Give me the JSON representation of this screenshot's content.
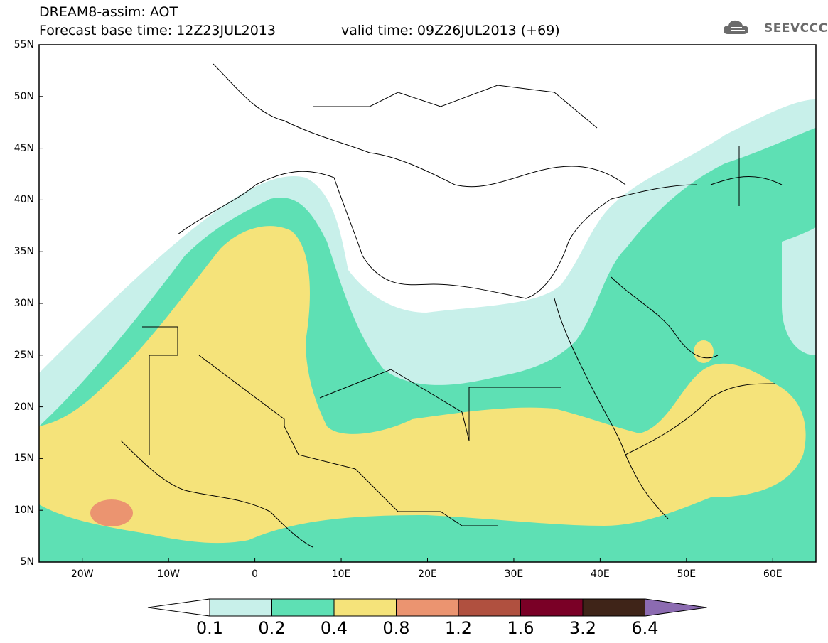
{
  "title_line1": "DREAM8-assim: AOT",
  "title_line2": "Forecast base time: 12Z23JUL2013",
  "valid_time": "valid time: 09Z26JUL2013 (+69)",
  "logo_text": "SEEVCCC",
  "lat_labels": [
    "55N",
    "50N",
    "45N",
    "40N",
    "35N",
    "30N",
    "25N",
    "20N",
    "15N",
    "10N",
    "5N"
  ],
  "lon_labels": [
    "20W",
    "10W",
    "0",
    "10E",
    "20E",
    "30E",
    "40E",
    "50E",
    "60E"
  ],
  "colorbar": {
    "labels": [
      "0.1",
      "0.2",
      "0.4",
      "0.8",
      "1.2",
      "1.6",
      "3.2",
      "6.4"
    ],
    "colors": [
      "#ffffff",
      "#c8f0ea",
      "#5ee0b4",
      "#f5e37a",
      "#eb9470",
      "#b0503f",
      "#7a0026",
      "#3f2418",
      "#8c6bb1"
    ]
  },
  "legend_levels": [
    0.1,
    0.2,
    0.4,
    0.8,
    1.2,
    1.6,
    3.2,
    6.4
  ],
  "map_extent": {
    "lon_min": -25,
    "lon_max": 65,
    "lat_min": 5,
    "lat_max": 55
  }
}
